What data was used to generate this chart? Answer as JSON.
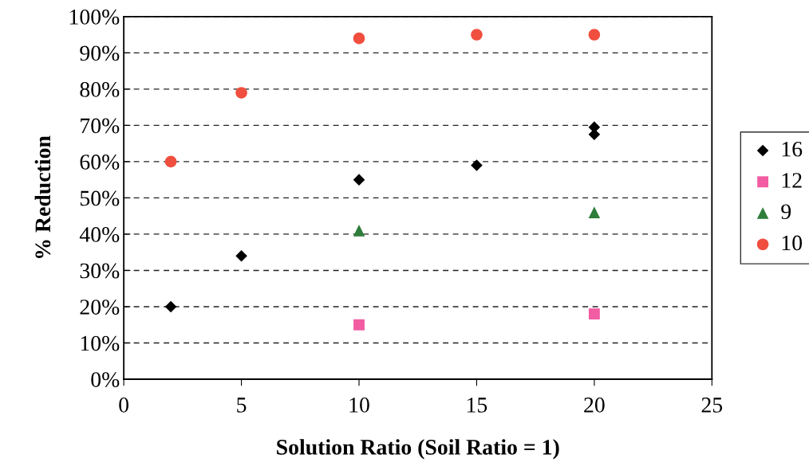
{
  "chart_data": {
    "type": "scatter",
    "xlabel": "Solution Ratio (Soil Ratio = 1)",
    "ylabel": "% Reduction",
    "xlim": [
      0,
      25
    ],
    "xticks": [
      0,
      5,
      10,
      15,
      20,
      25
    ],
    "ylim": [
      0,
      100
    ],
    "yticks": [
      {
        "value": 0,
        "label": "0%"
      },
      {
        "value": 10,
        "label": "10%"
      },
      {
        "value": 20,
        "label": "20%"
      },
      {
        "value": 30,
        "label": "30%"
      },
      {
        "value": 40,
        "label": "40%"
      },
      {
        "value": 50,
        "label": "50%"
      },
      {
        "value": 60,
        "label": "60%"
      },
      {
        "value": 70,
        "label": "70%"
      },
      {
        "value": 80,
        "label": "80%"
      },
      {
        "value": 90,
        "label": "90%"
      },
      {
        "value": 100,
        "label": "100%"
      }
    ],
    "grid": "y",
    "legend": "right",
    "series": [
      {
        "name": "16",
        "color": "#000000",
        "marker": "diamond",
        "x": [
          2,
          5,
          10,
          15,
          20,
          20
        ],
        "values": [
          20,
          34,
          55,
          59,
          69.5,
          67.5
        ]
      },
      {
        "name": "12",
        "color": "#f25ca2",
        "marker": "square",
        "x": [
          10,
          20
        ],
        "values": [
          15,
          18
        ]
      },
      {
        "name": "9",
        "color": "#2e7d3a",
        "marker": "triangle",
        "x": [
          10,
          20
        ],
        "values": [
          41,
          46
        ]
      },
      {
        "name": "10",
        "color": "#f04e3e",
        "marker": "circle",
        "x": [
          2,
          5,
          10,
          15,
          20
        ],
        "values": [
          60,
          79,
          94,
          95,
          95
        ]
      }
    ]
  }
}
